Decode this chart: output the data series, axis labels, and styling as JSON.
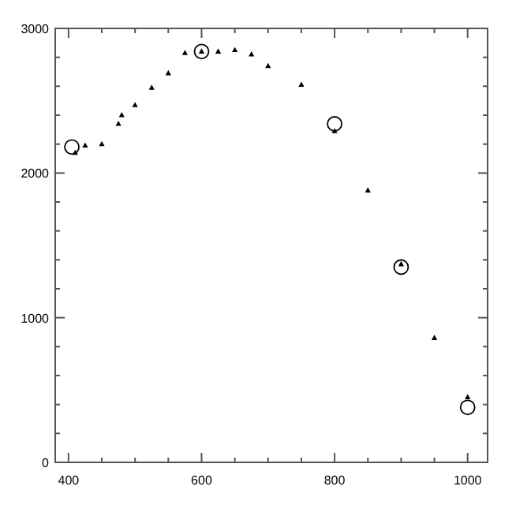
{
  "chart_data": {
    "type": "scatter",
    "xlim": [
      380,
      1030
    ],
    "ylim": [
      0,
      3000
    ],
    "xticks": [
      400,
      {
        "value": 450,
        "label": null
      },
      {
        "value": 500,
        "label": null
      },
      {
        "value": 550,
        "label": null
      },
      600,
      {
        "value": 650,
        "label": null
      },
      {
        "value": 700,
        "label": null
      },
      {
        "value": 750,
        "label": null
      },
      800,
      {
        "value": 850,
        "label": null
      },
      {
        "value": 900,
        "label": null
      },
      {
        "value": 950,
        "label": null
      },
      1000
    ],
    "yticks": [
      0,
      {
        "value": 200,
        "label": null
      },
      {
        "value": 400,
        "label": null
      },
      {
        "value": 600,
        "label": null
      },
      {
        "value": 800,
        "label": null
      },
      1000,
      {
        "value": 1200,
        "label": null
      },
      {
        "value": 1400,
        "label": null
      },
      {
        "value": 1600,
        "label": null
      },
      {
        "value": 1800,
        "label": null
      },
      2000,
      {
        "value": 2200,
        "label": null
      },
      {
        "value": 2400,
        "label": null
      },
      {
        "value": 2600,
        "label": null
      },
      {
        "value": 2800,
        "label": null
      },
      3000
    ],
    "grid": false,
    "series": [
      {
        "color": "#000000",
        "marker": "triangle",
        "x": [
          410,
          425,
          450,
          475,
          480,
          500,
          525,
          550,
          575,
          600,
          625,
          650,
          675,
          700,
          750,
          800,
          850,
          900,
          950,
          1000
        ],
        "values": [
          2140,
          2190,
          2200,
          2340,
          2400,
          2470,
          2590,
          2690,
          2830,
          2840,
          2840,
          2850,
          2820,
          2740,
          2610,
          2290,
          1880,
          1370,
          860,
          450
        ]
      },
      {
        "color": "#000000",
        "marker": "circle",
        "x": [
          405,
          600,
          800,
          900,
          1000
        ],
        "values": [
          2180,
          2840,
          2340,
          1350,
          380
        ]
      }
    ]
  }
}
